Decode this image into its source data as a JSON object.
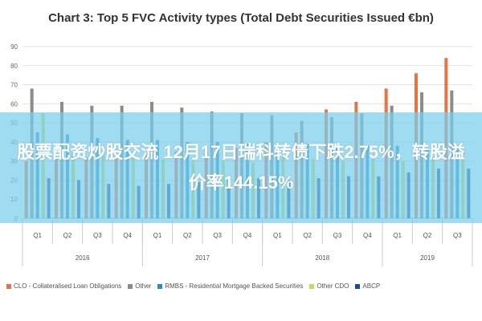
{
  "chart_data": {
    "type": "bar",
    "title": "Chart 3: Top 5 FVC Activity types (Total Debt Securities Issued €bn)",
    "xlabel": "",
    "ylabel": "",
    "ylim": [
      0,
      90
    ],
    "yticks": [
      0,
      10,
      20,
      30,
      40,
      50,
      60,
      70,
      80,
      90
    ],
    "grid": true,
    "legend_position": "bottom",
    "categories": [
      "Q1",
      "Q2",
      "Q3",
      "Q4",
      "Q1",
      "Q2",
      "Q3",
      "Q4",
      "Q1",
      "Q2",
      "Q3",
      "Q4",
      "Q1",
      "Q2",
      "Q3"
    ],
    "years": [
      {
        "label": "2016",
        "quarters": 4
      },
      {
        "label": "2017",
        "quarters": 4
      },
      {
        "label": "2018",
        "quarters": 4
      },
      {
        "label": "2019",
        "quarters": 3
      }
    ],
    "series": [
      {
        "name": "CLO - Collateralised Loan Obligations",
        "color": "#e8734a",
        "values": [
          30,
          31,
          32,
          33,
          34,
          35,
          36,
          37,
          40,
          45,
          57,
          61,
          68,
          76,
          84
        ]
      },
      {
        "name": "Other",
        "color": "#8c8c8c",
        "values": [
          68,
          61,
          59,
          59,
          61,
          58,
          56,
          55,
          54,
          51,
          53,
          55,
          59,
          66,
          67
        ]
      },
      {
        "name": "RMBS - Residential Mortgage Backed Securities",
        "color": "#2b8cc4",
        "values": [
          45,
          44,
          42,
          41,
          41,
          40,
          40,
          39,
          39,
          39,
          38,
          38,
          38,
          37,
          37
        ]
      },
      {
        "name": "Other CDO",
        "color": "#c5d95a",
        "values": [
          55,
          35,
          33,
          32,
          31,
          30,
          30,
          29,
          32,
          31,
          30,
          31,
          30,
          32,
          35
        ]
      },
      {
        "name": "ABCP",
        "color": "#1f4e8c",
        "values": [
          21,
          20,
          18,
          17,
          18,
          19,
          20,
          21,
          20,
          21,
          22,
          22,
          24,
          26,
          26
        ]
      }
    ]
  },
  "overlay": {
    "banner_text": "股票配资炒股交流 12月17日瑞科转债下跌2.75%，转股溢价率144.15%"
  }
}
